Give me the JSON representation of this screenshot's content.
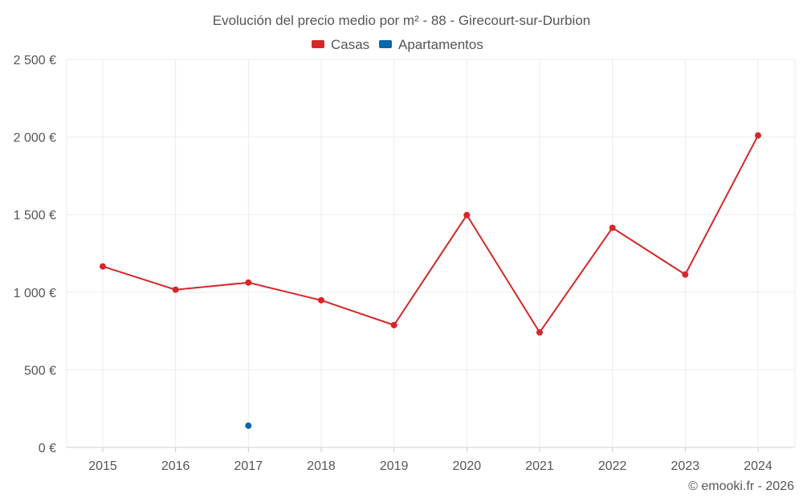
{
  "chart_data": {
    "type": "line",
    "title": "Evolución del precio medio por m² - 88 - Girecourt-sur-Durbion",
    "categories": [
      "2015",
      "2016",
      "2017",
      "2018",
      "2019",
      "2020",
      "2021",
      "2022",
      "2023",
      "2024"
    ],
    "series": [
      {
        "name": "Casas",
        "color": "#d62728",
        "values": [
          1166,
          1016,
          1062,
          948,
          788,
          1497,
          741,
          1415,
          1114,
          2010
        ]
      },
      {
        "name": "Apartamentos",
        "color": "#0868ac",
        "values": [
          null,
          null,
          140,
          null,
          null,
          null,
          null,
          null,
          null,
          null
        ]
      }
    ],
    "ylim": [
      0,
      2500
    ],
    "yticks": [
      0,
      500,
      1000,
      1500,
      2000,
      2500
    ],
    "ytick_labels": [
      "0 €",
      "500 €",
      "1 000 €",
      "1 500 €",
      "2 000 €",
      "2 500 €"
    ],
    "legend": "top-center",
    "grid": true
  },
  "credit": "© emooki.fr - 2026"
}
